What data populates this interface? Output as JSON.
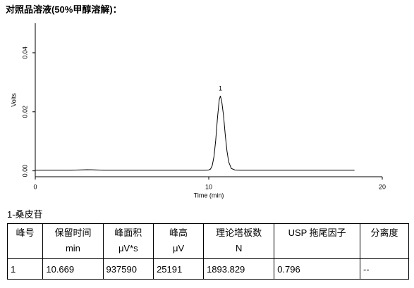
{
  "header": {
    "title": "对照品溶液(50%甲醇溶解)："
  },
  "chart_data": {
    "type": "line",
    "x_label": "Time (min)",
    "y_label": "Volts",
    "annotations": [
      {
        "text": "1",
        "x": 10.669,
        "y": 0.0254
      }
    ],
    "xlim": [
      0,
      20
    ],
    "xticks": [
      0,
      10,
      20
    ],
    "ylim": [
      -0.002,
      0.05
    ],
    "yticks": [
      {
        "value": 0,
        "label": "0.00"
      },
      {
        "value": 0.02,
        "label": "0.02"
      },
      {
        "value": 0.04,
        "label": "0.04"
      }
    ],
    "grid": false,
    "series": [
      {
        "name": "Volts",
        "color": "#000000",
        "x": [
          0,
          1,
          2,
          3,
          4,
          5,
          6,
          7,
          8,
          9,
          9.5,
          9.8,
          10,
          10.1,
          10.2,
          10.3,
          10.4,
          10.5,
          10.6,
          10.669,
          10.75,
          10.85,
          10.95,
          11.05,
          11.15,
          11.3,
          11.5,
          11.8,
          12,
          13,
          14,
          15,
          16,
          17,
          18,
          18.4
        ],
        "values": [
          0.0002,
          0.0002,
          0.0002,
          0.0004,
          0.0002,
          0.0002,
          0.0002,
          0.0002,
          0.0002,
          0.0002,
          0.0002,
          0.0002,
          0.0003,
          0.0006,
          0.0018,
          0.0048,
          0.0103,
          0.0178,
          0.0239,
          0.0254,
          0.0234,
          0.0188,
          0.0122,
          0.0067,
          0.003,
          0.0008,
          0.0003,
          0.0002,
          0.0002,
          0.0002,
          0.0002,
          0.0002,
          0.0002,
          0.0002,
          0.0002,
          0.0002
        ]
      }
    ]
  },
  "table": {
    "caption": "1-桑皮苷",
    "columns": [
      {
        "name": "峰号"
      },
      {
        "name": "保留时间",
        "unit": "min"
      },
      {
        "name": "峰面积",
        "unit": "μV*s"
      },
      {
        "name": "峰高",
        "unit": "μV"
      },
      {
        "name": "理论塔板数",
        "unit": "N"
      },
      {
        "name": "USP 拖尾因子"
      },
      {
        "name": "分离度"
      }
    ],
    "rows": [
      [
        "1",
        "10.669",
        "937590",
        "25191",
        "1893.829",
        "0.796",
        "--"
      ]
    ]
  }
}
